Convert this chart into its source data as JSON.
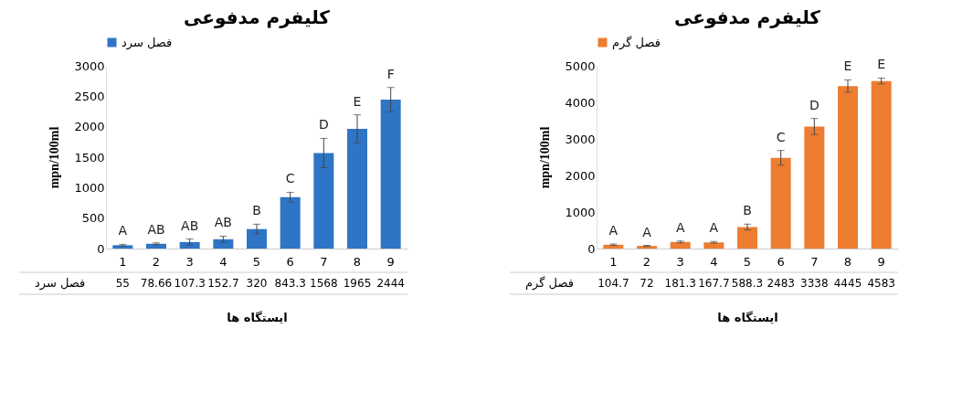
{
  "chart_data": [
    {
      "type": "bar",
      "title": "کلیفرم مدفوعی",
      "xlabel": "ایستگاه ها",
      "ylabel": "mpn/100ml",
      "categories": [
        "1",
        "2",
        "3",
        "4",
        "5",
        "6",
        "7",
        "8",
        "9"
      ],
      "series": [
        {
          "name": "فصل سرد",
          "color": "#2e75c6",
          "values": [
            55,
            78.66,
            107.3,
            152.7,
            320,
            843.3,
            1568,
            1965,
            2444
          ],
          "errors": [
            15,
            15,
            50,
            50,
            80,
            80,
            240,
            230,
            200
          ]
        }
      ],
      "ylim": [
        0,
        3000
      ],
      "yticks": [
        0,
        500,
        1000,
        1500,
        2000,
        2500,
        3000
      ],
      "legend": "top",
      "data_labels": true,
      "annotations": [
        "A",
        "AB",
        "AB",
        "AB",
        "B",
        "C",
        "D",
        "E",
        "F"
      ]
    },
    {
      "type": "bar",
      "title": "کلیفرم مدفوعی",
      "xlabel": "ایستگاه ها",
      "ylabel": "mpn/100ml",
      "categories": [
        "1",
        "2",
        "3",
        "4",
        "5",
        "6",
        "7",
        "8",
        "9"
      ],
      "series": [
        {
          "name": "فصل گرم",
          "color": "#ed7d31",
          "values": [
            104.7,
            72,
            181.3,
            167.7,
            588.3,
            2483,
            3338,
            4445,
            4583
          ],
          "errors": [
            20,
            15,
            25,
            25,
            80,
            200,
            220,
            170,
            80
          ]
        }
      ],
      "ylim": [
        0,
        5000
      ],
      "yticks": [
        0,
        1000,
        2000,
        3000,
        4000,
        5000
      ],
      "legend": "top",
      "data_labels": true,
      "annotations": [
        "A",
        "A",
        "A",
        "A",
        "B",
        "C",
        "D",
        "E",
        "E"
      ]
    }
  ]
}
